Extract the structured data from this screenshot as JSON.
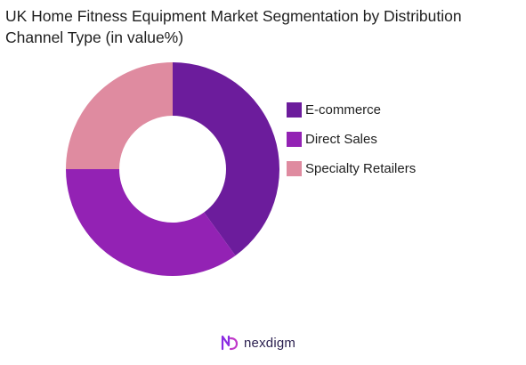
{
  "chart_data": {
    "type": "pie",
    "title": "UK Home Fitness Equipment Market Segmentation by Distribution Channel Type (in value%)",
    "donut": true,
    "categories": [
      "E-commerce",
      "Direct Sales",
      "Specialty Retailers"
    ],
    "values": [
      40,
      35,
      25
    ],
    "colors": [
      "#6c1c9c",
      "#9322b4",
      "#df8ba0"
    ],
    "legend_position": "right"
  },
  "brand": {
    "name": "nexdigm",
    "icon": "nexdigm-logo-icon",
    "color": "#8a2be2"
  }
}
